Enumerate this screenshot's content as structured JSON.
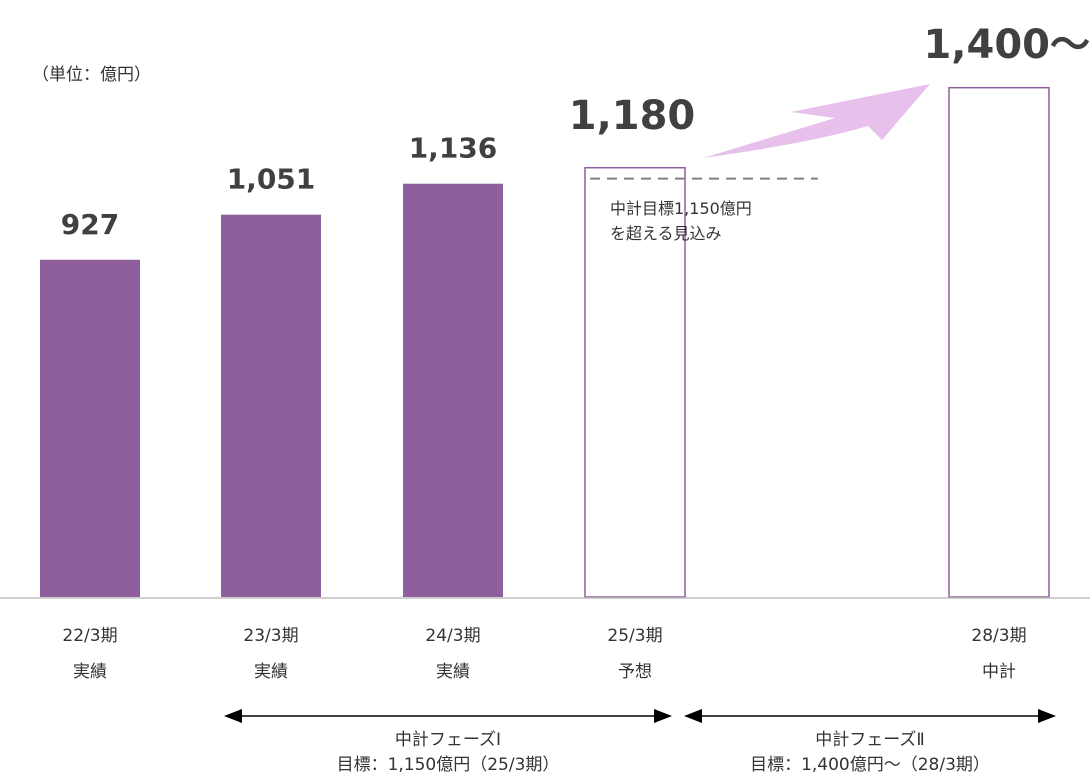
{
  "chart_data": {
    "type": "bar",
    "unit_label": "（単位：億円）",
    "categories": [
      {
        "period": "22/3期",
        "status": "実績"
      },
      {
        "period": "23/3期",
        "status": "実績"
      },
      {
        "period": "24/3期",
        "status": "実績"
      },
      {
        "period": "25/3期",
        "status": "予想"
      },
      {
        "period": "28/3期",
        "status": "中計"
      }
    ],
    "values": [
      927,
      1051,
      1136,
      1180,
      1400
    ],
    "value_labels": [
      "927",
      "1,051",
      "1,136",
      "1,180",
      "1,400〜"
    ],
    "bar_styles": [
      "filled",
      "filled",
      "filled",
      "outline",
      "outline"
    ],
    "target_line": {
      "value": 1150,
      "annotation_line1": "中計目標1,150億円",
      "annotation_line2": "を超える見込み"
    },
    "phases": [
      {
        "name": "中計フェーズⅠ",
        "target": "目標：1,150億円（25/3期）"
      },
      {
        "name": "中計フェーズⅡ",
        "target": "目標：1,400億円〜（28/3期）"
      }
    ],
    "colors": {
      "bar_fill": "#8E5F9C",
      "bar_outline": "#8E5F9C",
      "arrow": "#E8C0EC",
      "target_line": "#808080",
      "axis": "#BFBFBF",
      "value_text": "#404040"
    }
  }
}
